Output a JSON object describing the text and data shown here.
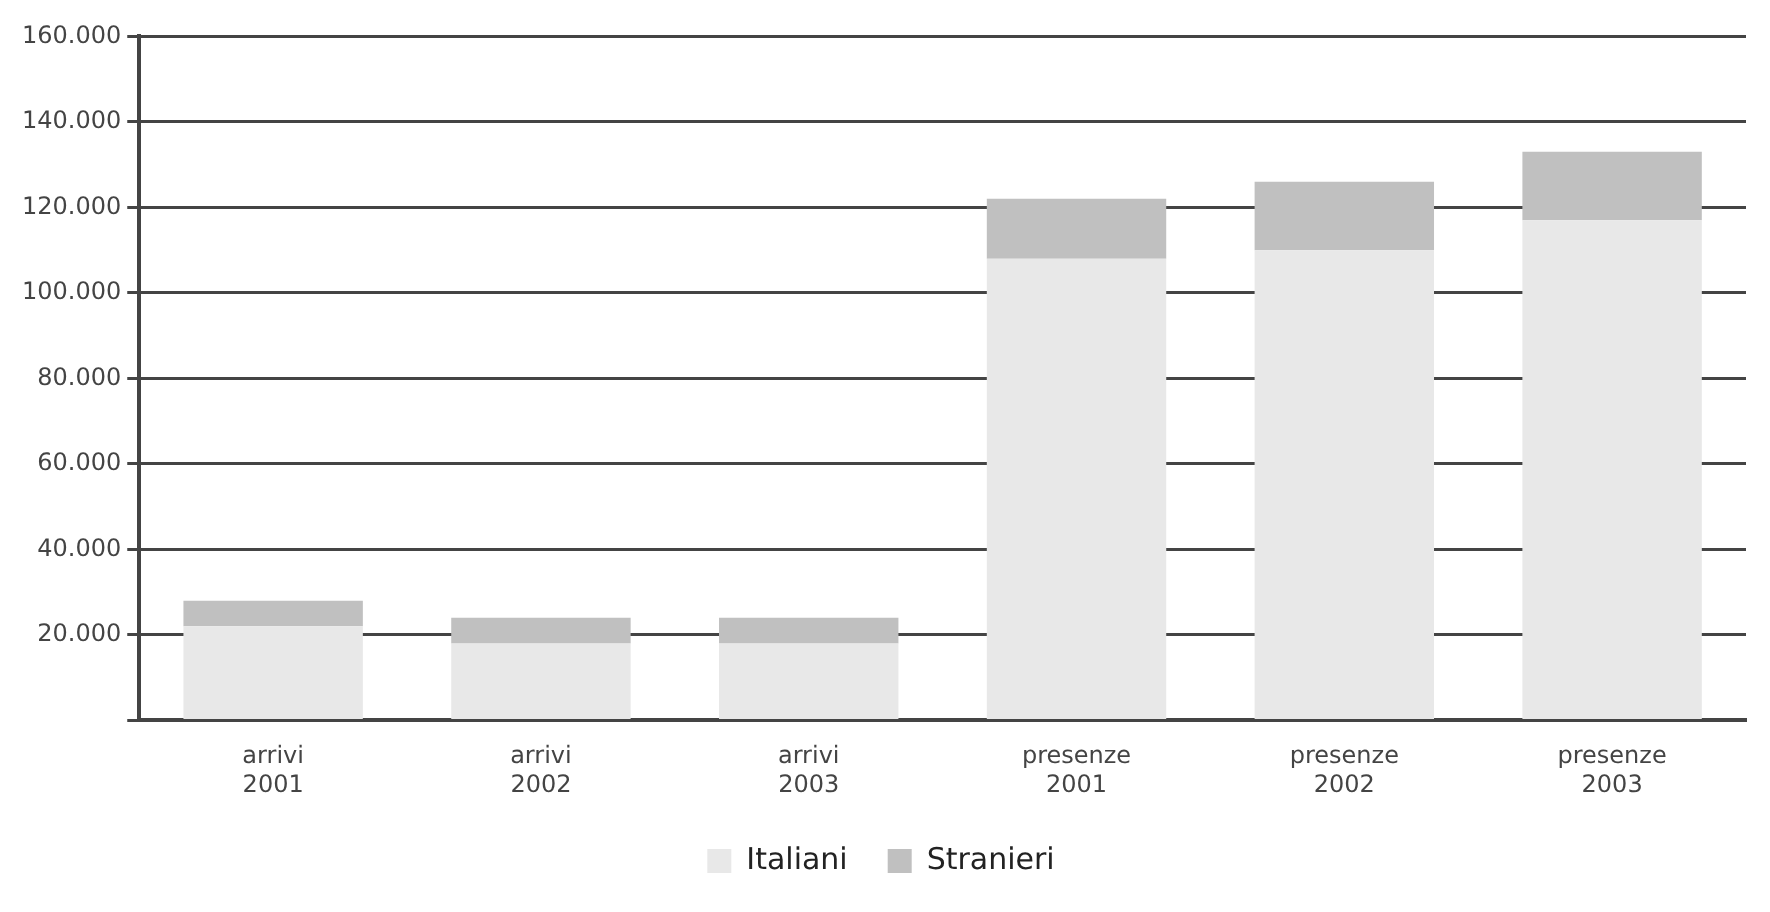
{
  "chart_data": {
    "type": "bar",
    "stacked": true,
    "categories": [
      "arrivi 2001",
      "arrivi 2002",
      "arrivi 2003",
      "presenze 2001",
      "presenze 2002",
      "presenze 2003"
    ],
    "series": [
      {
        "name": "Italiani",
        "color": "#e8e8e8",
        "values": [
          22000,
          18000,
          18000,
          108000,
          110000,
          117000
        ]
      },
      {
        "name": "Stranieri",
        "color": "#c0c0c0",
        "values": [
          6000,
          6000,
          6000,
          14000,
          16000,
          16000
        ]
      }
    ],
    "ylim": [
      0,
      160000
    ],
    "yticks": [
      {
        "value": 0,
        "label": null
      },
      {
        "value": 20000,
        "label": "20.000"
      },
      {
        "value": 40000,
        "label": "40.000"
      },
      {
        "value": 60000,
        "label": "60.000"
      },
      {
        "value": 80000,
        "label": "80.000"
      },
      {
        "value": 100000,
        "label": "100.000"
      },
      {
        "value": 120000,
        "label": "120.000"
      },
      {
        "value": 140000,
        "label": "140.000"
      },
      {
        "value": 160000,
        "label": "160.000"
      }
    ],
    "grid": "y",
    "legend": "bottom"
  }
}
